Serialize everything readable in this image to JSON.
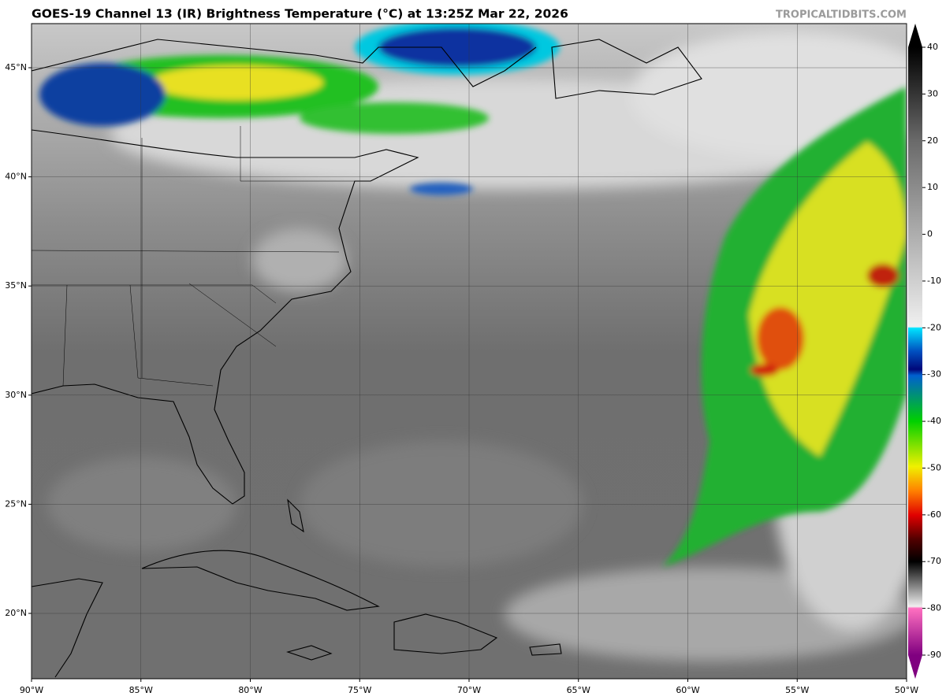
{
  "header": {
    "title": "GOES-19 Channel 13 (IR) Brightness Temperature (°C) at 13:25Z Mar 22, 2026",
    "credit": "TROPICALTIDBITS.COM"
  },
  "map": {
    "lon_labels": [
      "90°W",
      "85°W",
      "80°W",
      "75°W",
      "70°W",
      "65°W",
      "60°W",
      "55°W",
      "50°W"
    ],
    "lat_labels": [
      "45°N",
      "40°N",
      "35°N",
      "30°N",
      "25°N",
      "20°N"
    ]
  },
  "colorbar": {
    "range": [
      -90,
      40
    ],
    "ticks": [
      40,
      30,
      20,
      10,
      0,
      -10,
      -20,
      -30,
      -40,
      -50,
      -60,
      -70,
      -80,
      -90
    ]
  }
}
